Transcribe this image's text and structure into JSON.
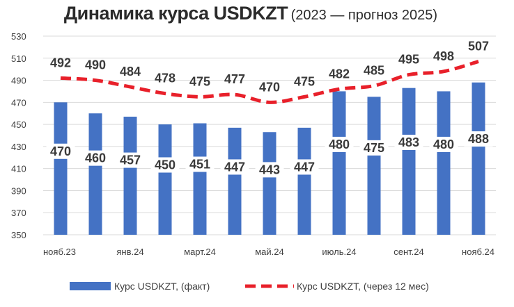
{
  "title": {
    "main": "Динамика курса USDKZT",
    "sub": "(2023 — прогноз 2025)"
  },
  "colors": {
    "bar": "#4472C4",
    "line": "#E8202A",
    "grid": "#d9d9d9"
  },
  "chart_data": {
    "type": "bar",
    "title": "Динамика курса USDKZT (2023 — прогноз 2025)",
    "xlabel": "",
    "ylabel": "",
    "ylim": [
      350,
      530
    ],
    "yticks": [
      350,
      370,
      390,
      410,
      430,
      450,
      470,
      490,
      510,
      530
    ],
    "categories": [
      "нояб.23",
      "",
      "янв.24",
      "",
      "март.24",
      "",
      "май.24",
      "",
      "июль.24",
      "",
      "сент.24",
      "",
      "нояб.24"
    ],
    "series": [
      {
        "name": "Курс USDKZT, (факт)",
        "type": "bar",
        "values": [
          470,
          460,
          457,
          450,
          451,
          447,
          443,
          447,
          480,
          475,
          483,
          480,
          488
        ]
      },
      {
        "name": "Курс USDKZT, (через 12 мес)",
        "type": "line",
        "style": "dashed",
        "values": [
          492,
          490,
          484,
          478,
          475,
          477,
          470,
          475,
          482,
          485,
          495,
          498,
          507
        ]
      }
    ],
    "grid": true,
    "legend_position": "bottom"
  }
}
